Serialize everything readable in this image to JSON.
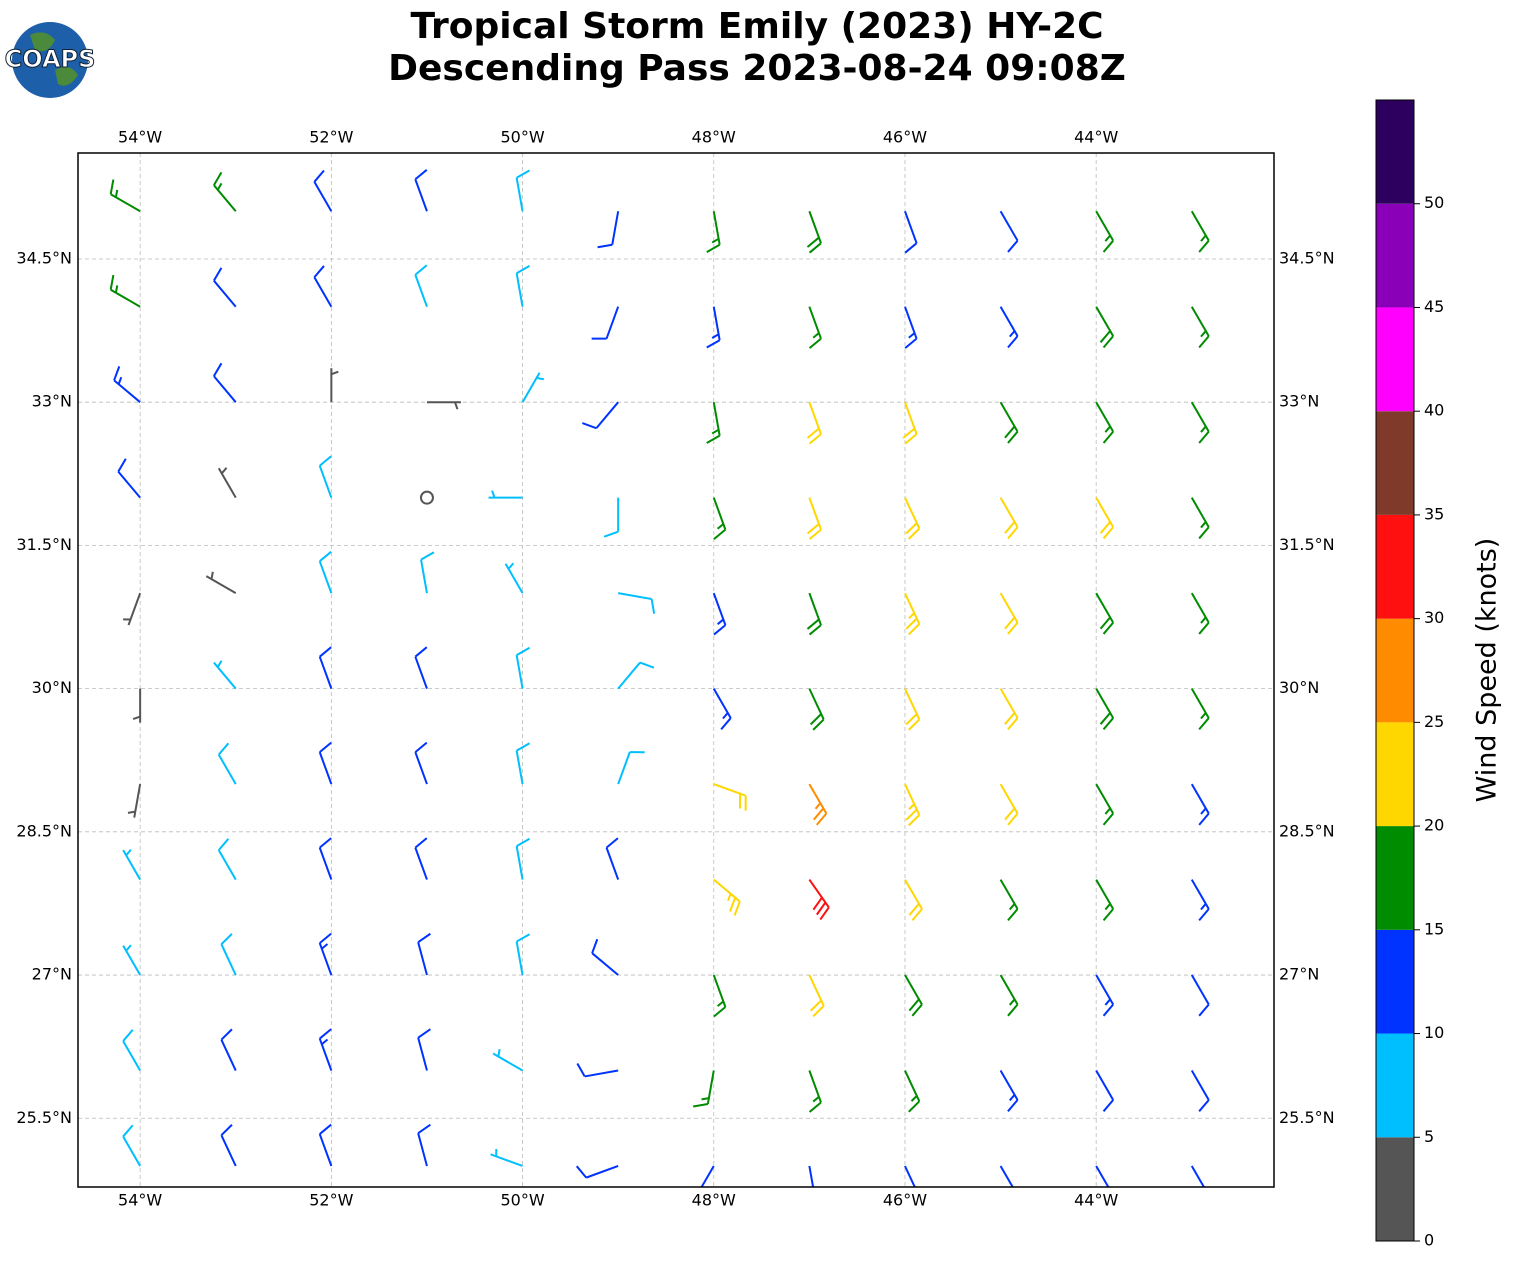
{
  "chart_data": {
    "type": "barbs",
    "logo": "COAPS",
    "title": "Tropical Storm Emily (2023) HY-2C",
    "subtitle": "Descending Pass 2023-08-24 09:08Z",
    "xlim": [
      -54.65,
      -42.14
    ],
    "ylim": [
      24.78,
      35.61
    ],
    "xticks": [
      {
        "value": -54,
        "label": "54°W"
      },
      {
        "value": -52,
        "label": "52°W"
      },
      {
        "value": -50,
        "label": "50°W"
      },
      {
        "value": -48,
        "label": "48°W"
      },
      {
        "value": -46,
        "label": "46°W"
      },
      {
        "value": -44,
        "label": "44°W"
      }
    ],
    "yticks": [
      {
        "value": 25.5,
        "label": "25.5°N"
      },
      {
        "value": 27,
        "label": "27°N"
      },
      {
        "value": 28.5,
        "label": "28.5°N"
      },
      {
        "value": 30,
        "label": "30°N"
      },
      {
        "value": 31.5,
        "label": "31.5°N"
      },
      {
        "value": 33,
        "label": "33°N"
      },
      {
        "value": 34.5,
        "label": "34.5°N"
      }
    ],
    "grid": true,
    "lons": [
      -54,
      -53,
      -52,
      -51,
      -50,
      -49,
      -48,
      -47,
      -46,
      -45,
      -44,
      -43
    ],
    "lats": [
      35,
      34,
      33,
      32,
      31,
      30,
      29,
      28,
      27,
      26,
      25
    ],
    "speed": [
      [
        15,
        15,
        12,
        12,
        8,
        12,
        15,
        18,
        12,
        10,
        17,
        17
      ],
      [
        17,
        12,
        10,
        8,
        8,
        12,
        13,
        16,
        14,
        13,
        18,
        17
      ],
      [
        13,
        12,
        3,
        3,
        6,
        10,
        15,
        20,
        20,
        18,
        17,
        15
      ],
      [
        12,
        4,
        8,
        2,
        7,
        8,
        17,
        21,
        22,
        20,
        21,
        17
      ],
      [
        4,
        3,
        8,
        9,
        7,
        8,
        14,
        18,
        23,
        22,
        18,
        17
      ],
      [
        3,
        7,
        11,
        10,
        8,
        9,
        13,
        19,
        22,
        21,
        18,
        16
      ],
      [
        4,
        8,
        12,
        11,
        8,
        9,
        20,
        27,
        24,
        20,
        16,
        14
      ],
      [
        6,
        9,
        12,
        11,
        8,
        12,
        24,
        30,
        22,
        17,
        15,
        13
      ],
      [
        7,
        9,
        13,
        12,
        8,
        12,
        17,
        22,
        18,
        15,
        13,
        12
      ],
      [
        8,
        10,
        13,
        12,
        7,
        11,
        16,
        17,
        15,
        13,
        12,
        12
      ],
      [
        8,
        10,
        12,
        11,
        7,
        12,
        14,
        14,
        13,
        12,
        11,
        11
      ]
    ],
    "direction": [
      [
        300,
        320,
        330,
        340,
        350,
        190,
        170,
        160,
        160,
        150,
        150,
        150
      ],
      [
        300,
        320,
        330,
        340,
        350,
        200,
        170,
        160,
        160,
        150,
        150,
        150
      ],
      [
        310,
        320,
        0,
        90,
        30,
        220,
        170,
        160,
        160,
        150,
        150,
        150
      ],
      [
        320,
        330,
        340,
        10,
        270,
        180,
        160,
        160,
        155,
        150,
        150,
        150
      ],
      [
        200,
        300,
        340,
        350,
        330,
        100,
        160,
        160,
        155,
        150,
        150,
        150
      ],
      [
        180,
        320,
        340,
        340,
        350,
        40,
        150,
        155,
        155,
        150,
        150,
        150
      ],
      [
        190,
        330,
        340,
        340,
        350,
        20,
        110,
        150,
        155,
        150,
        150,
        150
      ],
      [
        330,
        330,
        340,
        340,
        350,
        340,
        130,
        145,
        150,
        150,
        150,
        150
      ],
      [
        330,
        335,
        340,
        345,
        350,
        310,
        160,
        155,
        150,
        150,
        150,
        150
      ],
      [
        330,
        335,
        340,
        345,
        300,
        260,
        190,
        160,
        155,
        150,
        150,
        150
      ],
      [
        330,
        335,
        340,
        345,
        290,
        250,
        210,
        170,
        155,
        150,
        150,
        150
      ]
    ],
    "colorbar": {
      "label": "Wind Speed (knots)",
      "lim": [
        0,
        55
      ],
      "bounds": [
        0,
        5,
        10,
        15,
        20,
        25,
        30,
        35,
        40,
        45,
        50,
        55
      ],
      "colors": [
        "#555555",
        "#00bfff",
        "#0033ff",
        "#008c00",
        "#ffd700",
        "#ff8c00",
        "#ff1010",
        "#803a2a",
        "#ff00ff",
        "#8a00b8",
        "#2d0060"
      ],
      "ticks": [
        0,
        5,
        10,
        15,
        20,
        25,
        30,
        35,
        40,
        45,
        50
      ]
    }
  }
}
